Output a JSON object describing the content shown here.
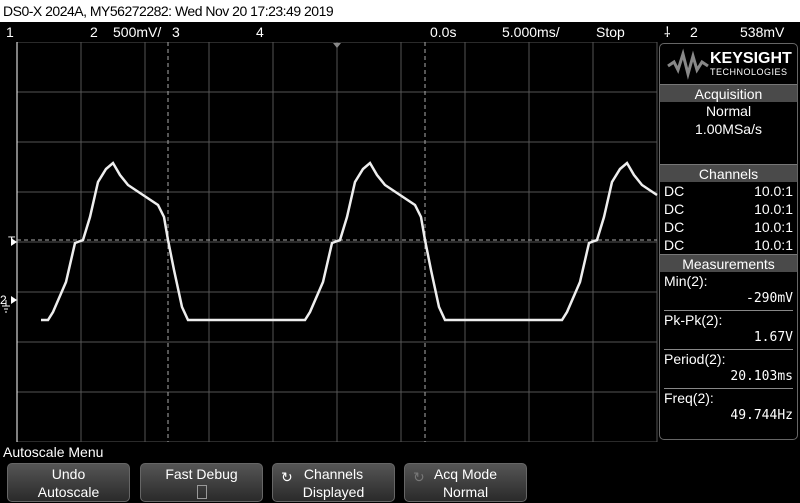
{
  "title": "DS0-X 2024A, MY56272282: Wed Nov 20 17:23:49 2019",
  "status": {
    "ch1": "1",
    "ch2": "2",
    "ch2_scale": "500mV/",
    "ch3": "3",
    "ch4": "4",
    "time_offset": "0.0s",
    "time_scale": "5.000ms/",
    "run_state": "Stop",
    "trigger_icon": "rising-edge-icon",
    "trigger_source": "2",
    "trigger_level": "538mV"
  },
  "markers": {
    "trigger": "T",
    "ground": "2"
  },
  "panel": {
    "brand": "KEYSIGHT",
    "brand_sub": "TECHNOLOGIES",
    "acquisition": {
      "header": "Acquisition",
      "mode": "Normal",
      "rate": "1.00MSa/s"
    },
    "channels": {
      "header": "Channels",
      "rows": [
        {
          "coupling": "DC",
          "probe": "10.0:1"
        },
        {
          "coupling": "DC",
          "probe": "10.0:1"
        },
        {
          "coupling": "DC",
          "probe": "10.0:1"
        },
        {
          "coupling": "DC",
          "probe": "10.0:1"
        }
      ]
    },
    "measurements": {
      "header": "Measurements",
      "items": [
        {
          "label": "Min(2):",
          "value": "-290mV"
        },
        {
          "label": "Pk-Pk(2):",
          "value": "1.67V"
        },
        {
          "label": "Period(2):",
          "value": "20.103ms"
        },
        {
          "label": "Freq(2):",
          "value": "49.744Hz"
        }
      ]
    }
  },
  "menu": {
    "title": "Autoscale Menu",
    "softkeys": [
      {
        "line1": "Undo",
        "line2": "Autoscale"
      },
      {
        "line1": "Fast Debug",
        "line2": ""
      },
      {
        "line1": "Channels",
        "line2": "Displayed"
      },
      {
        "line1": "Acq Mode",
        "line2": "Normal"
      }
    ]
  },
  "colors": {
    "trace": "#ffffff",
    "grid": "#555555",
    "softkey": "#444444"
  }
}
